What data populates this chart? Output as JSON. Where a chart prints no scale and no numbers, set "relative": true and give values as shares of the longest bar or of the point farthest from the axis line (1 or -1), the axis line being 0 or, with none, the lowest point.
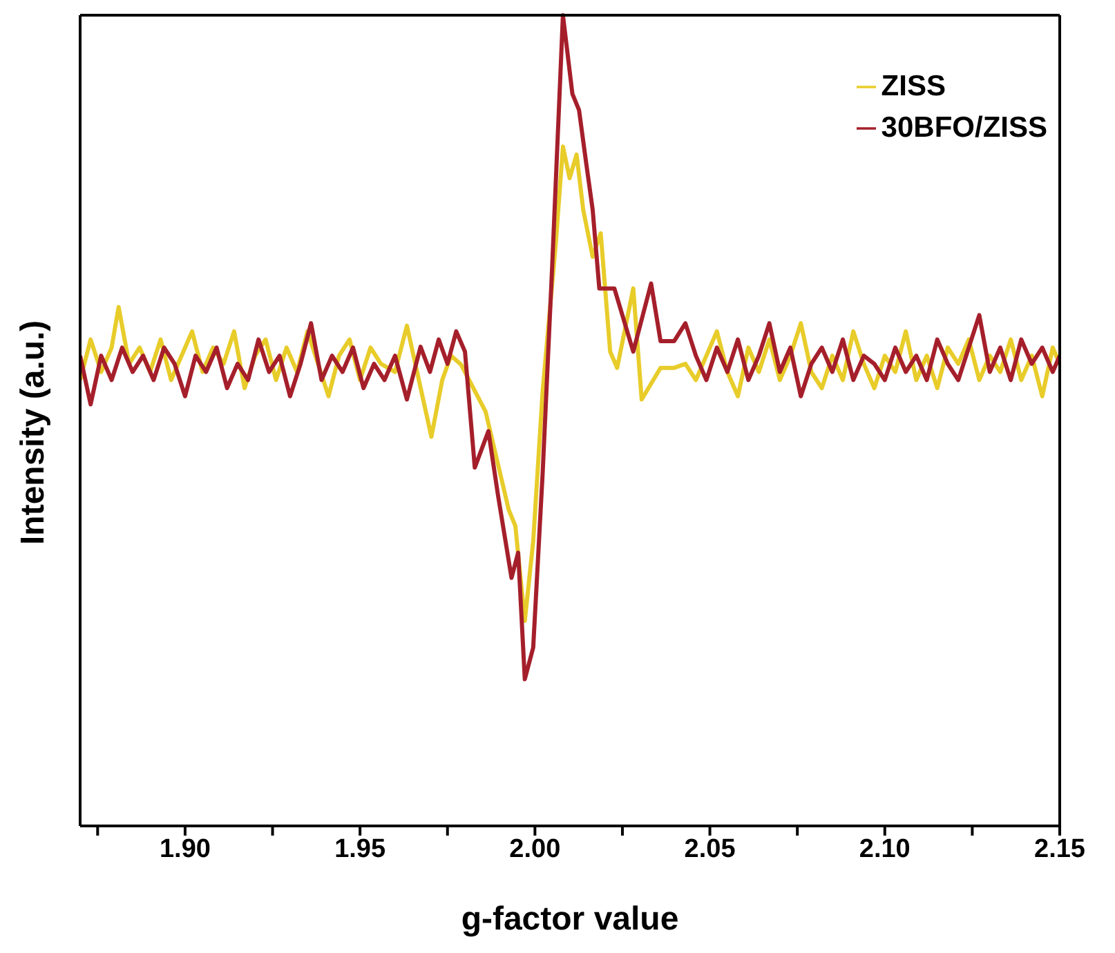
{
  "chart_data": {
    "type": "line",
    "xlabel": "g-factor value",
    "ylabel": "Intensity (a.u.)",
    "relative": true,
    "legend": "top right",
    "marker": "none",
    "line_style": "solid",
    "xlim": [
      1.87,
      2.15
    ],
    "xticks": [
      {
        "value": 1.875,
        "label": null
      },
      {
        "value": 1.9,
        "label": "1.90"
      },
      {
        "value": 1.925,
        "label": null
      },
      1.95,
      {
        "value": 1.975,
        "label": null
      },
      {
        "value": 2,
        "label": "2.00"
      },
      {
        "value": 2.025,
        "label": null
      },
      2.05,
      {
        "value": 2.075,
        "label": null
      },
      {
        "value": 2.1,
        "label": "2.10"
      },
      {
        "value": 2.125,
        "label": null
      },
      2.15
    ],
    "series": [
      {
        "name": "ZISS",
        "color": "#e8cc2a",
        "x": [
          1.87,
          1.873,
          1.876,
          1.879,
          1.881,
          1.884,
          1.887,
          1.89,
          1.893,
          1.896,
          1.899,
          1.902,
          1.905,
          1.908,
          1.911,
          1.914,
          1.917,
          1.92,
          1.923,
          1.926,
          1.929,
          1.932,
          1.935,
          1.938,
          1.941,
          1.944,
          1.947,
          1.95,
          1.953,
          1.956,
          1.96,
          1.9634,
          1.9704,
          1.9735,
          1.976,
          1.9789,
          1.9859,
          1.9925,
          1.9944,
          1.9971,
          1.9995,
          2.0022,
          2.006,
          2.008,
          2.0099,
          2.0119,
          2.0138,
          2.0165,
          2.0188,
          2.0215,
          2.0235,
          2.0281,
          2.0305,
          2.0359,
          2.0398,
          2.043,
          2.046,
          2.049,
          2.052,
          2.055,
          2.058,
          2.061,
          2.064,
          2.067,
          2.07,
          2.073,
          2.076,
          2.079,
          2.082,
          2.085,
          2.088,
          2.091,
          2.094,
          2.097,
          2.1,
          2.103,
          2.106,
          2.109,
          2.112,
          2.115,
          2.118,
          2.121,
          2.124,
          2.127,
          2.13,
          2.133,
          2.136,
          2.139,
          2.142,
          2.145,
          2.148,
          2.15
        ],
        "values": [
          0.55,
          0.6,
          0.56,
          0.59,
          0.64,
          0.57,
          0.59,
          0.56,
          0.6,
          0.55,
          0.58,
          0.61,
          0.56,
          0.59,
          0.57,
          0.61,
          0.54,
          0.58,
          0.6,
          0.55,
          0.59,
          0.56,
          0.61,
          0.57,
          0.53,
          0.58,
          0.6,
          0.55,
          0.59,
          0.57,
          0.56,
          0.617,
          0.48,
          0.55,
          0.58,
          0.569,
          0.511,
          0.39,
          0.37,
          0.253,
          0.351,
          0.536,
          0.721,
          0.838,
          0.799,
          0.828,
          0.76,
          0.702,
          0.731,
          0.585,
          0.565,
          0.663,
          0.526,
          0.565,
          0.565,
          0.57,
          0.55,
          0.58,
          0.61,
          0.56,
          0.53,
          0.59,
          0.56,
          0.6,
          0.55,
          0.58,
          0.62,
          0.56,
          0.54,
          0.58,
          0.55,
          0.61,
          0.57,
          0.54,
          0.58,
          0.56,
          0.61,
          0.55,
          0.58,
          0.54,
          0.59,
          0.57,
          0.6,
          0.55,
          0.58,
          0.56,
          0.6,
          0.55,
          0.58,
          0.53,
          0.59,
          0.57
        ]
      },
      {
        "name": "30BFO/ZISS",
        "color": "#a51f2b",
        "x": [
          1.87,
          1.873,
          1.876,
          1.879,
          1.882,
          1.885,
          1.888,
          1.891,
          1.894,
          1.897,
          1.9,
          1.903,
          1.906,
          1.909,
          1.912,
          1.915,
          1.918,
          1.921,
          1.924,
          1.927,
          1.93,
          1.933,
          1.936,
          1.939,
          1.942,
          1.945,
          1.948,
          1.951,
          1.954,
          1.957,
          1.96,
          1.9634,
          1.9673,
          1.97,
          1.9725,
          1.975,
          1.9775,
          1.98,
          1.9828,
          1.9867,
          1.9894,
          1.9933,
          1.9952,
          1.9971,
          1.9995,
          2.0022,
          2.0049,
          2.008,
          2.0107,
          2.0126,
          2.0146,
          2.0165,
          2.0184,
          2.0227,
          2.0281,
          2.0332,
          2.0359,
          2.0398,
          2.043,
          2.046,
          2.049,
          2.052,
          2.055,
          2.058,
          2.061,
          2.064,
          2.067,
          2.07,
          2.073,
          2.076,
          2.079,
          2.082,
          2.085,
          2.088,
          2.091,
          2.094,
          2.097,
          2.1,
          2.103,
          2.106,
          2.109,
          2.112,
          2.115,
          2.118,
          2.121,
          2.124,
          2.127,
          2.13,
          2.133,
          2.136,
          2.139,
          2.142,
          2.145,
          2.148,
          2.15
        ],
        "values": [
          0.58,
          0.52,
          0.58,
          0.55,
          0.59,
          0.56,
          0.58,
          0.55,
          0.59,
          0.57,
          0.53,
          0.58,
          0.56,
          0.59,
          0.54,
          0.57,
          0.55,
          0.6,
          0.56,
          0.58,
          0.53,
          0.57,
          0.62,
          0.55,
          0.58,
          0.56,
          0.59,
          0.54,
          0.57,
          0.55,
          0.58,
          0.526,
          0.591,
          0.56,
          0.6,
          0.57,
          0.61,
          0.585,
          0.442,
          0.487,
          0.409,
          0.306,
          0.337,
          0.181,
          0.22,
          0.435,
          0.688,
          1.0,
          0.903,
          0.883,
          0.819,
          0.76,
          0.663,
          0.663,
          0.585,
          0.669,
          0.598,
          0.598,
          0.62,
          0.58,
          0.55,
          0.59,
          0.56,
          0.6,
          0.55,
          0.58,
          0.62,
          0.56,
          0.59,
          0.53,
          0.57,
          0.59,
          0.56,
          0.6,
          0.55,
          0.58,
          0.57,
          0.55,
          0.59,
          0.56,
          0.58,
          0.55,
          0.6,
          0.57,
          0.55,
          0.59,
          0.63,
          0.56,
          0.59,
          0.55,
          0.6,
          0.57,
          0.59,
          0.56,
          0.58
        ]
      }
    ]
  }
}
